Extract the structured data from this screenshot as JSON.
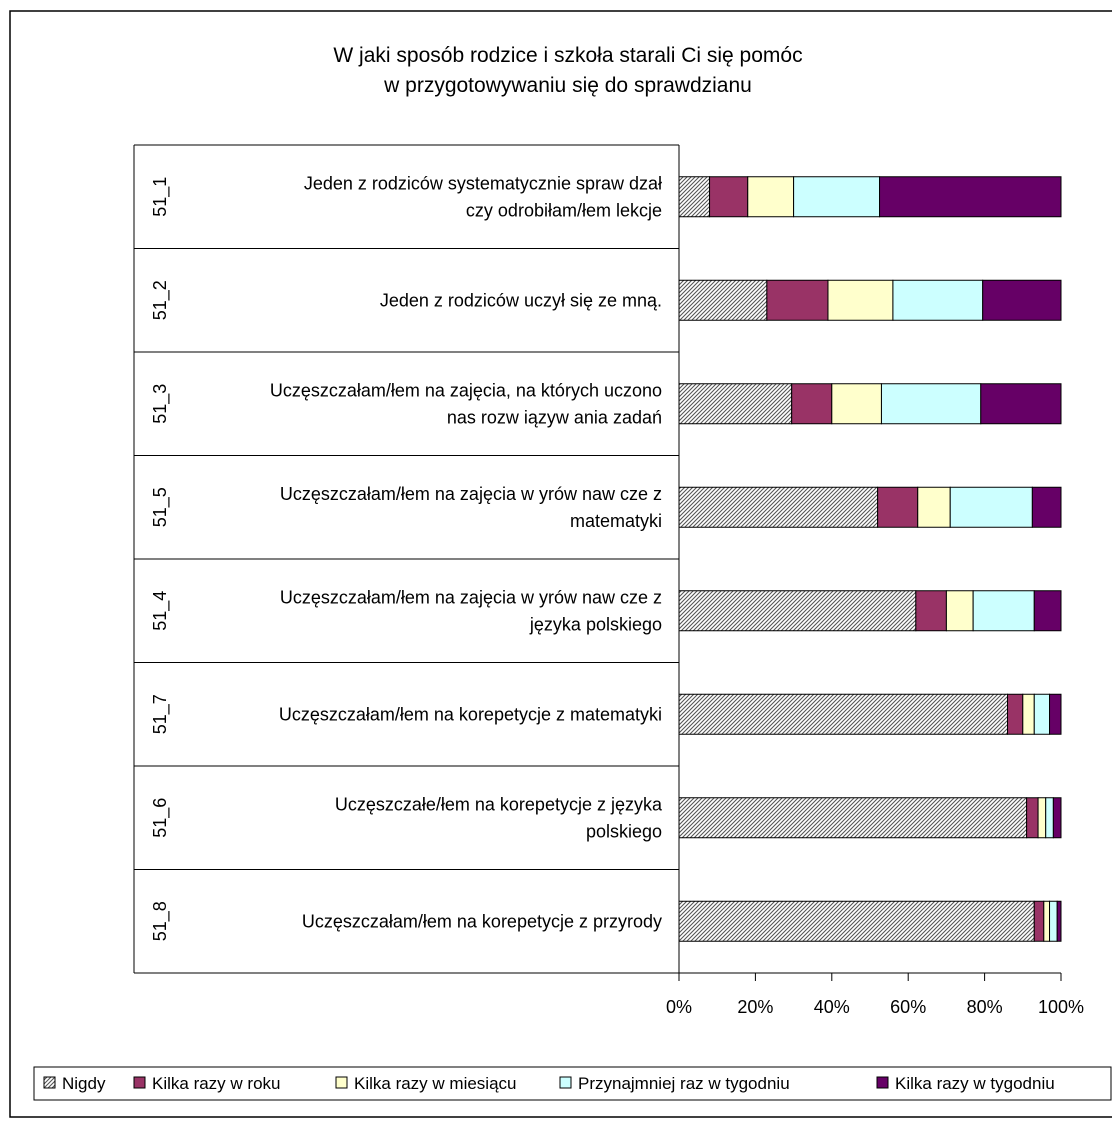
{
  "chart_data": {
    "type": "bar",
    "orientation": "horizontal",
    "stacked": "percent",
    "title": [
      "W jaki sposób rodzice i szkoła starali Ci się pomóc",
      "w przygotowywaniu się do sprawdzianu"
    ],
    "categories": [
      {
        "code": "51_1",
        "label": [
          "Jeden z rodziców systematycznie spraw dzał",
          "czy odrobiłam/łem lekcje"
        ]
      },
      {
        "code": "51_2",
        "label": [
          "Jeden z rodziców uczył się ze mną."
        ]
      },
      {
        "code": "51_3",
        "label": [
          "Uczęszczałam/łem na zajęcia, na których uczono",
          "nas rozw iązyw ania zadań"
        ]
      },
      {
        "code": "51_5",
        "label": [
          "Uczęszczałam/łem na zajęcia w yrów naw cze z",
          "matematyki"
        ]
      },
      {
        "code": "51_4",
        "label": [
          "Uczęszczałam/łem na zajęcia w yrów naw cze z",
          "języka polskiego"
        ]
      },
      {
        "code": "51_7",
        "label": [
          "Uczęszczałam/łem na korepetycje z matematyki"
        ]
      },
      {
        "code": "51_6",
        "label": [
          "Uczęszczałe/łem na korepetycje z języka",
          "polskiego"
        ]
      },
      {
        "code": "51_8",
        "label": [
          "Uczęszczałam/łem na korepetycje z przyrody"
        ]
      }
    ],
    "series": [
      {
        "name": "Nigdy",
        "color": "#a0a0a0",
        "pattern": "hatch",
        "values": [
          8,
          23,
          29.5,
          52,
          62,
          86,
          91,
          93
        ]
      },
      {
        "name": "Kilka razy w roku",
        "color": "#993366",
        "values": [
          10,
          16,
          10.5,
          10.5,
          8,
          4,
          3,
          2.5
        ]
      },
      {
        "name": "Kilka razy w miesiącu",
        "color": "#ffffcc",
        "values": [
          12,
          17,
          13,
          8.5,
          7,
          3,
          2,
          1.5
        ]
      },
      {
        "name": "Przynajmniej raz w tygodniu",
        "color": "#ccffff",
        "values": [
          22.5,
          23.5,
          26,
          21.5,
          16,
          4,
          2,
          2
        ]
      },
      {
        "name": "Kilka razy w tygodniu",
        "color": "#660066",
        "values": [
          47.5,
          20.5,
          21,
          7.5,
          7,
          3,
          2,
          1
        ]
      }
    ],
    "xlim": [
      0,
      100
    ],
    "xticks": [
      "0%",
      "20%",
      "40%",
      "60%",
      "80%",
      "100%"
    ],
    "xlabel": "",
    "ylabel": "",
    "grid": false,
    "legend_position": "bottom"
  }
}
